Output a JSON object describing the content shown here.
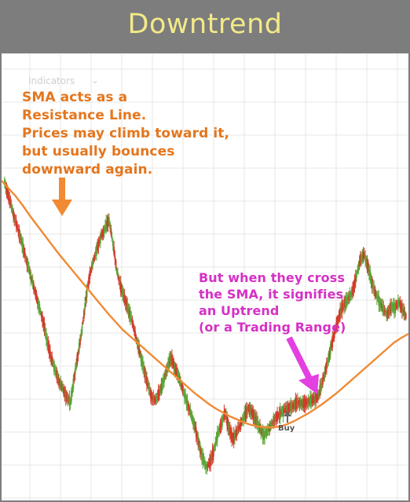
{
  "header": {
    "title": "Downtrend"
  },
  "overlay": {
    "indicators_label": "Indicators",
    "chevron": "⌄"
  },
  "annotations": {
    "sma_note": "SMA acts as a\nResistance Line.\nPrices may climb toward it,\nbut usually bounces\ndownward again.",
    "cross_note": "But when they cross\nthe SMA, it signifies\nan Uptrend\n(or a Trading Range)",
    "buy_label": "Buy"
  },
  "colors": {
    "up": "#5aa537",
    "down": "#d23a2a",
    "sma": "#f08a33",
    "grid": "#e7e7e7",
    "arrow_orange": "#f08a33",
    "arrow_magenta": "#e43fe0"
  },
  "chart_data": {
    "type": "line",
    "series": [
      {
        "values": [
          232,
          250,
          268,
          285,
          302,
          320,
          338,
          356,
          374,
          392,
          410,
          435,
          455,
          470,
          485,
          495,
          505,
          512,
          480,
          450,
          420,
          380,
          350,
          330,
          315,
          300,
          290,
          280,
          310,
          345,
          365,
          380,
          395,
          410,
          430,
          450,
          470,
          490,
          505,
          510,
          500,
          485,
          470,
          455,
          468,
          480,
          495,
          510,
          525,
          540,
          560,
          580,
          595,
          590,
          575,
          555,
          540,
          525,
          545,
          560,
          550,
          540,
          530,
          520,
          525,
          535,
          545,
          555,
          548,
          540,
          532,
          528,
          524,
          520,
          518,
          515,
          512,
          514,
          512,
          510,
          508,
          505,
          490,
          470,
          450,
          430,
          410,
          395,
          385,
          380,
          370,
          350,
          330,
          325,
          340,
          360,
          375,
          385,
          395,
          400,
          390,
          392,
          385,
          395,
          405
        ]
      },
      {
        "values": [
          230,
          240,
          250,
          262,
          275,
          287,
          299,
          311,
          323,
          334,
          345,
          356,
          367,
          378,
          389,
          400,
          410,
          420,
          428,
          436,
          444,
          452,
          460,
          468,
          476,
          484,
          492,
          500,
          507,
          514,
          520,
          525,
          530,
          534,
          538,
          541,
          543,
          544,
          544,
          543,
          540,
          536,
          531,
          526,
          520,
          514,
          507,
          500,
          492,
          484,
          476,
          468,
          460,
          452,
          444,
          436,
          430,
          425
        ]
      }
    ]
  }
}
